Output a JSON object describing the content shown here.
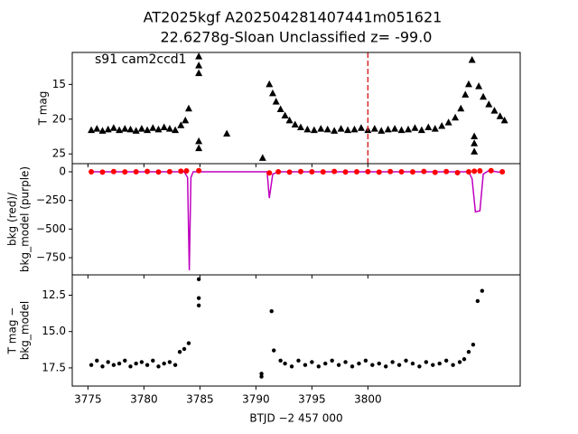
{
  "chart_data": [
    {
      "type": "scatter",
      "title": "AT2025kgf  A202504281407441m051621",
      "subtitle": "22.6278g-Sloan Unclassified z= -99.0",
      "annotation": "s91 cam2ccd1",
      "ylabel": [
        "T mag"
      ],
      "xlim": [
        3773.6,
        3813.6
      ],
      "ylim": [
        10.4,
        26.4
      ],
      "y_inverted": true,
      "yticks": [
        15,
        20,
        25
      ],
      "vline": {
        "x": 3800,
        "color": "#d62728"
      },
      "series": [
        {
          "name": "T mag",
          "color": "#000000",
          "marker": "triangle",
          "mode": "markers",
          "x": [
            3775.3,
            3775.8,
            3776.3,
            3776.8,
            3777.3,
            3777.8,
            3778.3,
            3778.8,
            3779.3,
            3779.8,
            3780.3,
            3780.8,
            3781.3,
            3781.8,
            3782.3,
            3782.8,
            3783.3,
            3783.7,
            3784.0,
            3784.9,
            3784.9,
            3784.9,
            3784.9,
            3784.9,
            3787.4,
            3790.6,
            3791.2,
            3791.5,
            3791.8,
            3792.2,
            3792.6,
            3793.0,
            3793.5,
            3794.0,
            3794.6,
            3795.2,
            3795.8,
            3796.4,
            3797.0,
            3797.6,
            3798.2,
            3798.8,
            3799.4,
            3800.0,
            3800.6,
            3801.2,
            3801.8,
            3802.4,
            3803.0,
            3803.6,
            3804.2,
            3804.8,
            3805.4,
            3806.0,
            3806.6,
            3807.2,
            3807.8,
            3808.3,
            3808.7,
            3809.0,
            3809.3,
            3809.5,
            3809.5,
            3809.5,
            3809.9,
            3810.3,
            3810.8,
            3811.3,
            3811.8,
            3812.2
          ],
          "values": [
            21.6,
            21.4,
            21.7,
            21.5,
            21.3,
            21.6,
            21.4,
            21.5,
            21.7,
            21.4,
            21.6,
            21.3,
            21.5,
            21.2,
            21.4,
            21.6,
            20.9,
            20.2,
            18.5,
            11.0,
            12.3,
            13.4,
            23.2,
            24.2,
            22.1,
            25.6,
            15.0,
            16.3,
            17.5,
            18.6,
            19.5,
            20.2,
            20.8,
            21.2,
            21.5,
            21.6,
            21.4,
            21.5,
            21.7,
            21.4,
            21.6,
            21.5,
            21.3,
            21.6,
            21.4,
            21.7,
            21.5,
            21.4,
            21.6,
            21.5,
            21.3,
            21.6,
            21.2,
            21.4,
            21.0,
            20.5,
            19.8,
            18.5,
            16.5,
            15.0,
            11.5,
            22.5,
            23.5,
            24.7,
            15.3,
            16.8,
            17.9,
            18.8,
            19.6,
            20.2
          ]
        }
      ]
    },
    {
      "type": "scatter",
      "ylabel": [
        "bkg (red)/",
        "bkg_model (purple)"
      ],
      "xlim": [
        3773.6,
        3813.6
      ],
      "ylim": [
        -900,
        71
      ],
      "y_inverted": false,
      "yticks": [
        0,
        {
          "value": -250,
          "label": "−250"
        },
        {
          "value": -500,
          "label": "−500"
        },
        {
          "value": -750,
          "label": "−750"
        }
      ],
      "series": [
        {
          "name": "bkg_model",
          "color": "#bf00bf",
          "mode": "line",
          "x": [
            3775.3,
            3783.6,
            3783.9,
            3784.05,
            3784.2,
            3784.4,
            3791.0,
            3791.2,
            3791.5,
            3792.0,
            3809.0,
            3809.3,
            3809.6,
            3810.0,
            3810.3,
            3810.8,
            3811.5,
            3812.2
          ],
          "values": [
            0,
            0,
            -50,
            -860,
            -50,
            0,
            0,
            -230,
            -20,
            0,
            0,
            -60,
            -350,
            -340,
            -20,
            10,
            0,
            -10
          ]
        },
        {
          "name": "bkg",
          "color": "#ff0000",
          "marker": "circle",
          "mode": "markers",
          "x": [
            3775.3,
            3776.3,
            3777.3,
            3778.3,
            3779.3,
            3780.3,
            3781.3,
            3782.3,
            3783.3,
            3783.8,
            3784.9,
            3791.2,
            3792.0,
            3793.0,
            3794.0,
            3795.0,
            3796.0,
            3797.0,
            3798.0,
            3799.0,
            3800.0,
            3801.0,
            3802.0,
            3803.0,
            3804.0,
            3805.0,
            3806.0,
            3807.0,
            3808.0,
            3809.0,
            3809.5,
            3810.0,
            3811.0,
            3812.0
          ],
          "values": [
            0,
            -3,
            2,
            -1,
            0,
            3,
            -2,
            1,
            5,
            8,
            10,
            -10,
            0,
            -3,
            2,
            0,
            -1,
            3,
            -2,
            0,
            1,
            -3,
            2,
            0,
            -1,
            3,
            -5,
            2,
            -8,
            0,
            5,
            8,
            10,
            0
          ]
        }
      ]
    },
    {
      "type": "scatter",
      "ylabel": [
        "T mag −",
        "bkg_model"
      ],
      "xlabel": "BTJD −2 457 000",
      "xlim": [
        3773.6,
        3813.6
      ],
      "xticks": [
        3775,
        3780,
        3785,
        3790,
        3795,
        3800
      ],
      "ylim": [
        11.1,
        18.75
      ],
      "y_inverted": true,
      "yticks": [
        12.5,
        {
          "value": 15,
          "label": "15.0"
        },
        17.5
      ],
      "series": [
        {
          "name": "T mag − bkg_model",
          "color": "#000000",
          "marker": "circle",
          "mode": "markers",
          "x": [
            3775.3,
            3775.8,
            3776.3,
            3776.8,
            3777.3,
            3777.8,
            3778.3,
            3778.8,
            3779.3,
            3779.8,
            3780.3,
            3780.8,
            3781.3,
            3781.8,
            3782.3,
            3782.8,
            3783.2,
            3783.6,
            3784.0,
            3784.9,
            3784.9,
            3784.9,
            3790.5,
            3790.5,
            3791.4,
            3791.6,
            3792.2,
            3792.6,
            3793.2,
            3793.8,
            3794.4,
            3795.0,
            3795.6,
            3796.2,
            3796.8,
            3797.4,
            3798.0,
            3798.6,
            3799.2,
            3799.8,
            3800.4,
            3801.0,
            3801.6,
            3802.2,
            3802.8,
            3803.4,
            3804.0,
            3804.6,
            3805.2,
            3805.8,
            3806.4,
            3807.0,
            3807.6,
            3808.2,
            3808.6,
            3809.0,
            3809.4,
            3809.8,
            3810.2
          ],
          "values": [
            17.3,
            17.0,
            17.4,
            17.1,
            17.3,
            17.2,
            17.0,
            17.4,
            17.2,
            17.1,
            17.3,
            17.0,
            17.4,
            17.2,
            17.1,
            17.3,
            16.4,
            16.2,
            15.8,
            11.4,
            12.7,
            13.2,
            17.9,
            18.1,
            13.6,
            16.3,
            17.0,
            17.2,
            17.4,
            17.0,
            17.3,
            17.1,
            17.4,
            17.2,
            17.0,
            17.3,
            17.1,
            17.4,
            17.2,
            17.0,
            17.3,
            17.2,
            17.4,
            17.1,
            17.3,
            17.0,
            17.2,
            17.4,
            17.1,
            17.3,
            17.2,
            17.0,
            17.3,
            17.1,
            16.9,
            16.4,
            15.9,
            12.9,
            12.2
          ]
        }
      ]
    }
  ]
}
